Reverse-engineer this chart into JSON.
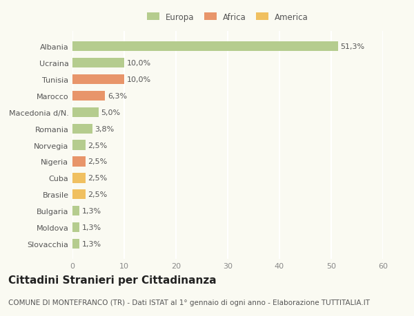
{
  "categories": [
    "Albania",
    "Ucraina",
    "Tunisia",
    "Marocco",
    "Macedonia d/N.",
    "Romania",
    "Norvegia",
    "Nigeria",
    "Cuba",
    "Brasile",
    "Bulgaria",
    "Moldova",
    "Slovacchia"
  ],
  "values": [
    51.3,
    10.0,
    10.0,
    6.3,
    5.0,
    3.8,
    2.5,
    2.5,
    2.5,
    2.5,
    1.3,
    1.3,
    1.3
  ],
  "labels": [
    "51,3%",
    "10,0%",
    "10,0%",
    "6,3%",
    "5,0%",
    "3,8%",
    "2,5%",
    "2,5%",
    "2,5%",
    "2,5%",
    "1,3%",
    "1,3%",
    "1,3%"
  ],
  "continent": [
    "Europa",
    "Europa",
    "Africa",
    "Africa",
    "Europa",
    "Europa",
    "Europa",
    "Africa",
    "America",
    "America",
    "Europa",
    "Europa",
    "Europa"
  ],
  "colors": {
    "Europa": "#b5cc8e",
    "Africa": "#e8956a",
    "America": "#f0c060"
  },
  "legend_labels": [
    "Europa",
    "Africa",
    "America"
  ],
  "legend_colors": [
    "#b5cc8e",
    "#e8956a",
    "#f0c060"
  ],
  "title": "Cittadini Stranieri per Cittadinanza",
  "subtitle": "COMUNE DI MONTEFRANCO (TR) - Dati ISTAT al 1° gennaio di ogni anno - Elaborazione TUTTITALIA.IT",
  "xlim": [
    0,
    60
  ],
  "xticks": [
    0,
    10,
    20,
    30,
    40,
    50,
    60
  ],
  "background_color": "#fafaf2",
  "grid_color": "#ffffff",
  "bar_height": 0.6,
  "label_fontsize": 8,
  "tick_fontsize": 8,
  "title_fontsize": 11,
  "subtitle_fontsize": 7.5
}
